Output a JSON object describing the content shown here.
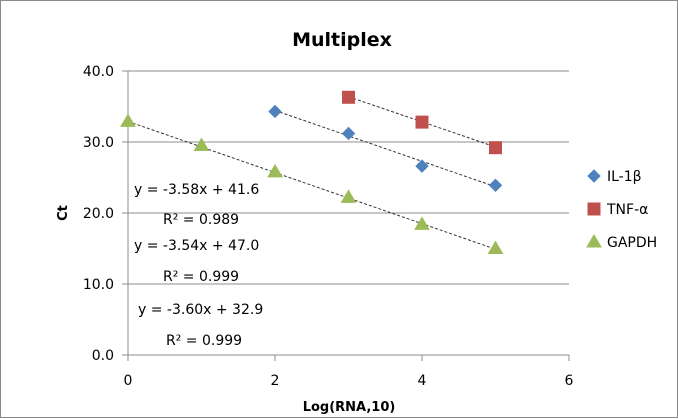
{
  "chart_data": {
    "type": "scatter",
    "title": "Multiplex",
    "xlabel": "Log(RNA,10)",
    "ylabel": "Ct",
    "xlim": [
      0,
      6
    ],
    "ylim": [
      0,
      40
    ],
    "xticks": [
      "0",
      "2",
      "4",
      "6"
    ],
    "yticks": [
      "0.0",
      "10.0",
      "20.0",
      "30.0",
      "40.0"
    ],
    "grid": "horizontal major gridlines",
    "legend_position": "right",
    "series": [
      {
        "name": "IL-1β",
        "marker": "diamond",
        "color": "#4f81bd",
        "x": [
          2,
          3,
          4,
          5
        ],
        "y": [
          34.3,
          31.2,
          26.6,
          23.9
        ],
        "trendline": {
          "slope": -3.58,
          "intercept": 41.6
        }
      },
      {
        "name": "TNF-α",
        "marker": "square",
        "color": "#c0504d",
        "x": [
          3,
          4,
          5
        ],
        "y": [
          36.3,
          32.8,
          29.2
        ],
        "trendline": {
          "slope": -3.54,
          "intercept": 47.0
        }
      },
      {
        "name": "GAPDH",
        "marker": "triangle",
        "color": "#9bbb59",
        "x": [
          0,
          1,
          2,
          3,
          4,
          5
        ],
        "y": [
          32.9,
          29.5,
          25.8,
          22.2,
          18.4,
          15.0
        ],
        "trendline": {
          "slope": -3.6,
          "intercept": 32.9
        }
      }
    ],
    "annotations": [
      "y = -3.58x + 41.6",
      "R² = 0.989",
      "y = -3.54x + 47.0",
      "R² = 0.999",
      "y = -3.60x + 32.9",
      "R² = 0.999"
    ]
  }
}
